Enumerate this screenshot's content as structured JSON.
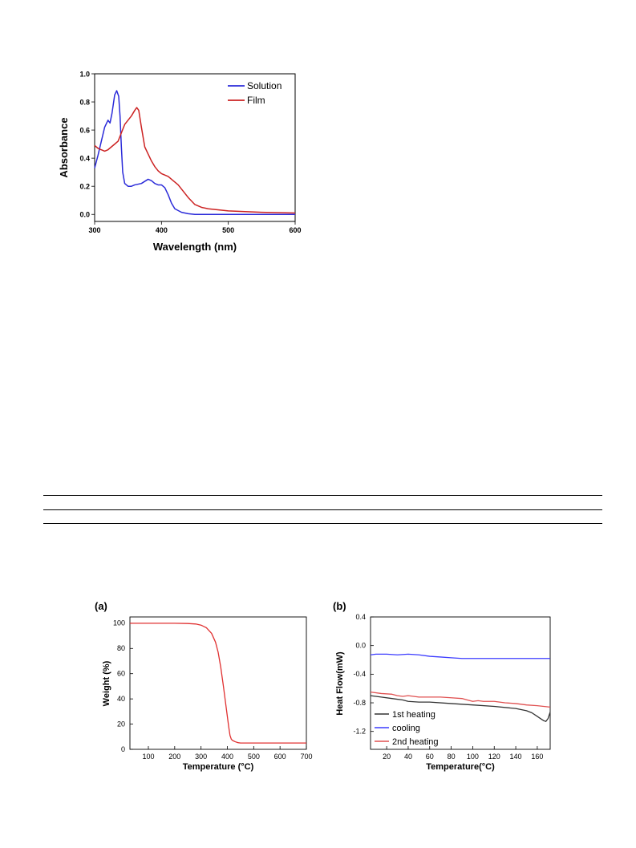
{
  "colors": {
    "solution": "#2b2bd9",
    "film": "#cc2222",
    "tga": "#e03030",
    "first_heating": "#333333",
    "cooling": "#3b3bff",
    "second_heating": "#e05050"
  },
  "chart_data": [
    {
      "id": "uvvis",
      "type": "line",
      "xlabel": "Wavelength (nm)",
      "ylabel": "Absorbance",
      "xlim": [
        300,
        600
      ],
      "ylim": [
        -0.05,
        1.0
      ],
      "xticks": [
        300,
        400,
        500,
        600
      ],
      "yticks": [
        0.0,
        0.2,
        0.4,
        0.6,
        0.8,
        1.0
      ],
      "ytick_labels": [
        "0.0",
        "0.2",
        "0.4",
        "0.6",
        "0.8",
        "1.0"
      ],
      "legend_position": "top-right",
      "series": [
        {
          "name": "Solution",
          "color_key": "solution",
          "x": [
            300,
            305,
            310,
            315,
            320,
            323,
            326,
            330,
            333,
            336,
            338,
            340,
            342,
            345,
            350,
            355,
            360,
            370,
            380,
            385,
            390,
            395,
            400,
            405,
            410,
            415,
            420,
            430,
            440,
            450,
            470,
            500,
            600
          ],
          "y": [
            0.33,
            0.42,
            0.52,
            0.62,
            0.67,
            0.65,
            0.72,
            0.85,
            0.88,
            0.84,
            0.7,
            0.48,
            0.3,
            0.22,
            0.2,
            0.2,
            0.21,
            0.22,
            0.25,
            0.24,
            0.22,
            0.21,
            0.21,
            0.19,
            0.14,
            0.08,
            0.04,
            0.015,
            0.005,
            0.0,
            0.0,
            0.0,
            0.0
          ]
        },
        {
          "name": "Film",
          "color_key": "film",
          "x": [
            300,
            305,
            310,
            315,
            320,
            325,
            330,
            335,
            340,
            345,
            350,
            355,
            360,
            363,
            366,
            370,
            375,
            380,
            385,
            390,
            395,
            400,
            405,
            410,
            415,
            420,
            425,
            430,
            440,
            450,
            460,
            470,
            500,
            550,
            600
          ],
          "y": [
            0.49,
            0.47,
            0.46,
            0.45,
            0.46,
            0.48,
            0.5,
            0.52,
            0.58,
            0.64,
            0.67,
            0.7,
            0.74,
            0.76,
            0.74,
            0.62,
            0.48,
            0.43,
            0.38,
            0.34,
            0.31,
            0.29,
            0.28,
            0.27,
            0.25,
            0.23,
            0.21,
            0.18,
            0.12,
            0.07,
            0.05,
            0.04,
            0.025,
            0.015,
            0.01
          ]
        }
      ]
    },
    {
      "id": "tga",
      "type": "line",
      "panel_label": "(a)",
      "xlabel": "Temperature (°C)",
      "ylabel": "Weight (%)",
      "xlim": [
        30,
        700
      ],
      "ylim": [
        0,
        105
      ],
      "xticks": [
        100,
        200,
        300,
        400,
        500,
        600,
        700
      ],
      "yticks": [
        0,
        20,
        40,
        60,
        80,
        100
      ],
      "ytick_labels": [
        "0",
        "20",
        "40",
        "60",
        "80",
        "100"
      ],
      "series": [
        {
          "color_key": "tga",
          "x": [
            30,
            100,
            200,
            250,
            280,
            300,
            320,
            340,
            355,
            365,
            375,
            385,
            395,
            405,
            410,
            415,
            420,
            430,
            440,
            450,
            500,
            600,
            700
          ],
          "y": [
            100,
            100,
            100,
            99.8,
            99.4,
            98.5,
            96.5,
            92,
            85,
            77,
            65,
            50,
            34,
            18,
            11,
            8,
            7,
            6,
            5.3,
            5,
            5,
            5,
            5
          ]
        }
      ]
    },
    {
      "id": "dsc",
      "type": "line",
      "panel_label": "(b)",
      "xlabel": "Temperature(°C)",
      "ylabel": "Heat Flow(mW)",
      "xlim": [
        5,
        172
      ],
      "ylim": [
        -1.45,
        0.4
      ],
      "xticks": [
        20,
        40,
        60,
        80,
        100,
        120,
        140,
        160
      ],
      "yticks": [
        -1.2,
        -0.8,
        -0.4,
        0.0,
        0.4
      ],
      "ytick_labels": [
        "-1.2",
        "-0.8",
        "-0.4",
        "0.0",
        "0.4"
      ],
      "legend_position": "bottom-left",
      "series": [
        {
          "name": "1st heating",
          "color_key": "first_heating",
          "x": [
            5,
            15,
            25,
            35,
            40,
            50,
            60,
            80,
            100,
            120,
            140,
            150,
            155,
            160,
            163,
            166,
            168,
            170,
            172
          ],
          "y": [
            -0.7,
            -0.72,
            -0.74,
            -0.76,
            -0.78,
            -0.79,
            -0.79,
            -0.81,
            -0.83,
            -0.85,
            -0.88,
            -0.91,
            -0.94,
            -0.99,
            -1.02,
            -1.05,
            -1.06,
            -1.02,
            -0.93
          ]
        },
        {
          "name": "cooling",
          "color_key": "cooling",
          "x": [
            5,
            10,
            20,
            30,
            40,
            50,
            60,
            70,
            80,
            90,
            100,
            120,
            140,
            160,
            172
          ],
          "y": [
            -0.13,
            -0.12,
            -0.12,
            -0.13,
            -0.12,
            -0.13,
            -0.15,
            -0.16,
            -0.17,
            -0.18,
            -0.18,
            -0.18,
            -0.18,
            -0.18,
            -0.18
          ]
        },
        {
          "name": "2nd heating",
          "color_key": "second_heating",
          "x": [
            5,
            15,
            25,
            30,
            35,
            40,
            50,
            60,
            70,
            80,
            90,
            95,
            100,
            105,
            110,
            120,
            130,
            140,
            150,
            160,
            172
          ],
          "y": [
            -0.65,
            -0.67,
            -0.68,
            -0.7,
            -0.71,
            -0.7,
            -0.72,
            -0.72,
            -0.72,
            -0.73,
            -0.74,
            -0.76,
            -0.78,
            -0.77,
            -0.78,
            -0.78,
            -0.8,
            -0.81,
            -0.83,
            -0.84,
            -0.86
          ]
        }
      ]
    }
  ]
}
